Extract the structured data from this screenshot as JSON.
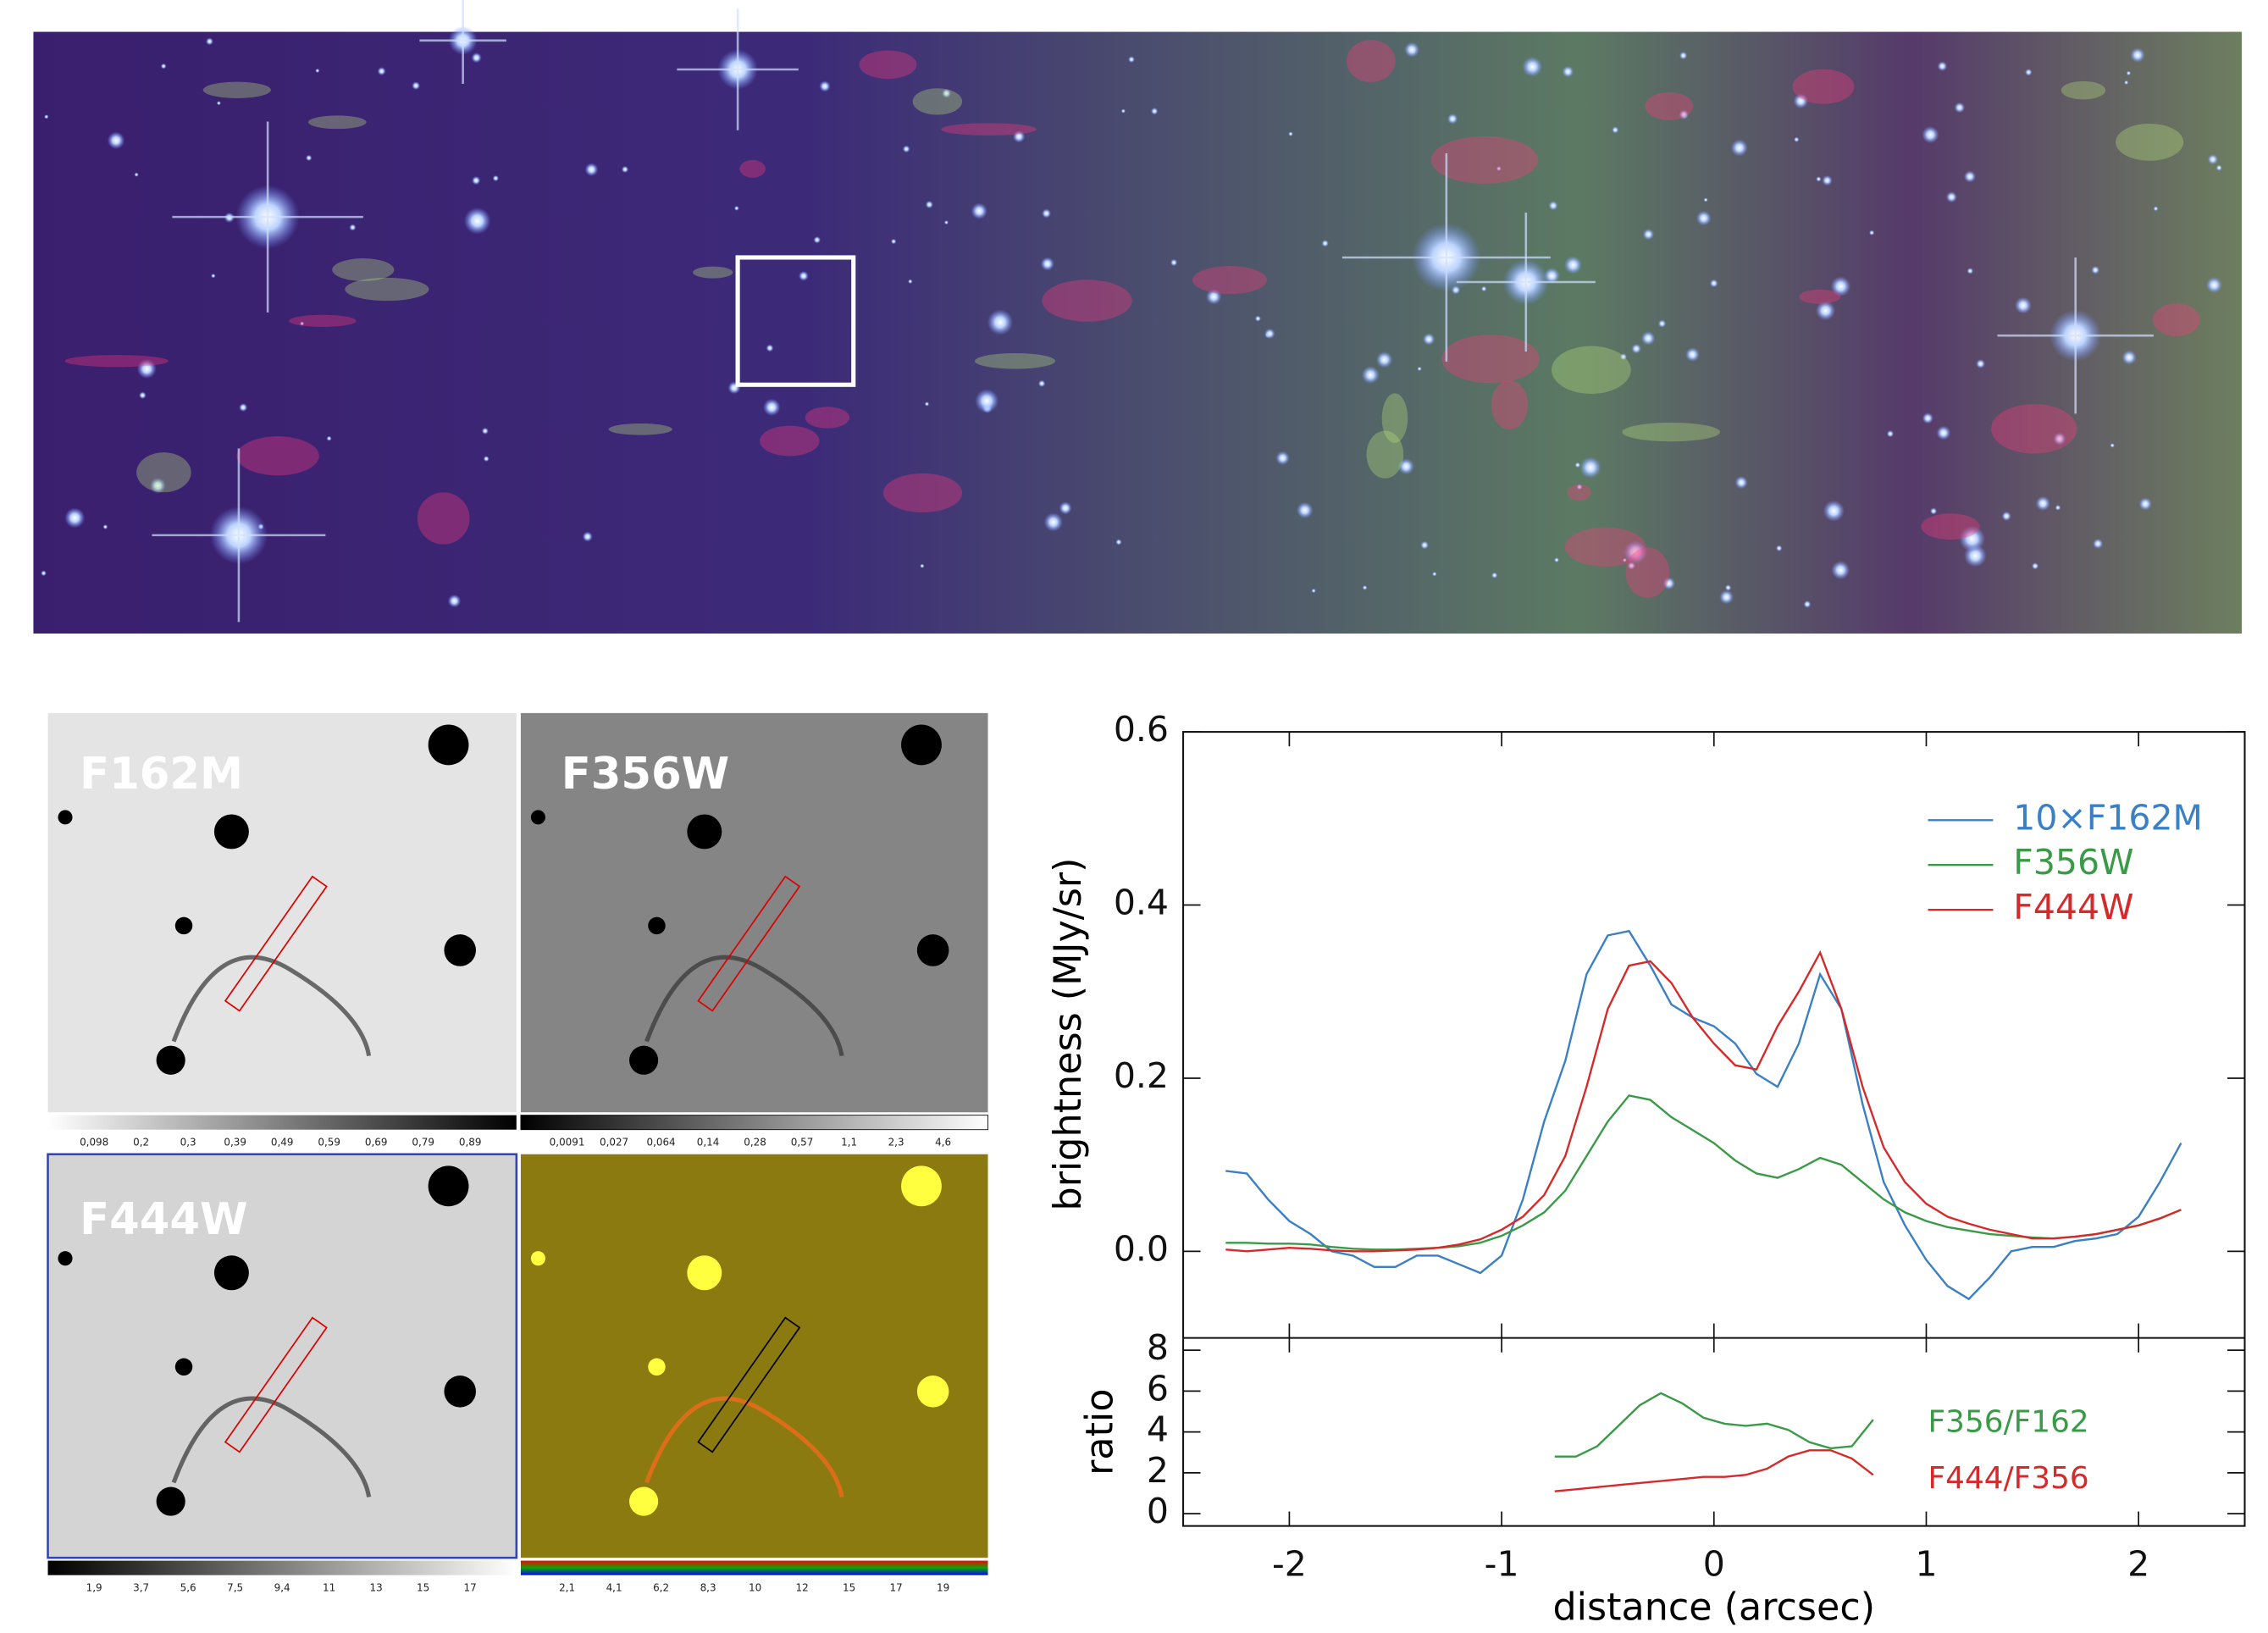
{
  "panels": [
    {
      "label": "F162M",
      "colorbar_labels": [
        "0,098",
        "0,2",
        "0,3",
        "0,39",
        "0,49",
        "0,59",
        "0,69",
        "0,79",
        "0,89"
      ]
    },
    {
      "label": "F356W",
      "colorbar_labels": [
        "0,0091",
        "0,027",
        "0,064",
        "0,14",
        "0,28",
        "0,57",
        "1,1",
        "2,3",
        "4,6"
      ]
    },
    {
      "label": "F444W",
      "colorbar_labels": [
        "1,9",
        "3,7",
        "5,6",
        "7,5",
        "9,4",
        "11",
        "13",
        "15",
        "17"
      ]
    },
    {
      "colorbar_labels": [
        "2,1",
        "4,1",
        "6,2",
        "8,3",
        "10",
        "12",
        "15",
        "17",
        "19"
      ]
    }
  ],
  "chart_data": [
    {
      "type": "line",
      "ylabel": "brightness (MJy/sr)",
      "x": [
        -2.3,
        -2.2,
        -2.1,
        -2.0,
        -1.9,
        -1.8,
        -1.7,
        -1.6,
        -1.5,
        -1.4,
        -1.3,
        -1.2,
        -1.1,
        -1.0,
        -0.9,
        -0.8,
        -0.7,
        -0.6,
        -0.5,
        -0.4,
        -0.3,
        -0.2,
        -0.1,
        0.0,
        0.1,
        0.2,
        0.3,
        0.4,
        0.5,
        0.6,
        0.7,
        0.8,
        0.9,
        1.0,
        1.1,
        1.2,
        1.3,
        1.4,
        1.5,
        1.6,
        1.7,
        1.8,
        1.9,
        2.0,
        2.1,
        2.2
      ],
      "xlim": [
        -2.5,
        2.5
      ],
      "ylim": [
        -0.1,
        0.6
      ],
      "yticks": [
        {
          "value": 0,
          "label": "0.0"
        },
        0.2,
        0.4,
        0.6
      ],
      "series": [
        {
          "name": "10×F162M",
          "color": "#3b7fc4",
          "values": [
            0.093,
            0.09,
            0.06,
            0.035,
            0.02,
            0.0,
            -0.005,
            -0.018,
            -0.018,
            -0.005,
            -0.005,
            -0.015,
            -0.025,
            -0.005,
            0.06,
            0.15,
            0.22,
            0.32,
            0.365,
            0.37,
            0.33,
            0.285,
            0.27,
            0.26,
            0.24,
            0.205,
            0.19,
            0.24,
            0.32,
            0.28,
            0.17,
            0.08,
            0.03,
            -0.01,
            -0.04,
            -0.055,
            -0.03,
            0.0,
            0.005,
            0.005,
            0.012,
            0.015,
            0.02,
            0.04,
            0.08,
            0.125
          ]
        },
        {
          "name": "F356W",
          "color": "#3a9a48",
          "values": [
            0.01,
            0.01,
            0.009,
            0.009,
            0.008,
            0.005,
            0.003,
            0.002,
            0.002,
            0.003,
            0.004,
            0.006,
            0.01,
            0.018,
            0.03,
            0.045,
            0.07,
            0.11,
            0.15,
            0.18,
            0.175,
            0.155,
            0.14,
            0.125,
            0.105,
            0.09,
            0.085,
            0.095,
            0.108,
            0.1,
            0.08,
            0.06,
            0.045,
            0.035,
            0.028,
            0.024,
            0.02,
            0.018,
            0.016,
            0.015,
            0.017,
            0.02,
            0.025,
            0.03,
            0.038,
            0.048
          ]
        },
        {
          "name": "F444W",
          "color": "#d62a2a",
          "values": [
            0.002,
            0.0,
            0.002,
            0.004,
            0.003,
            0.001,
            0.0,
            0.0,
            0.001,
            0.002,
            0.004,
            0.008,
            0.014,
            0.025,
            0.04,
            0.065,
            0.11,
            0.19,
            0.28,
            0.33,
            0.335,
            0.31,
            0.27,
            0.24,
            0.215,
            0.21,
            0.26,
            0.3,
            0.345,
            0.28,
            0.19,
            0.12,
            0.08,
            0.055,
            0.04,
            0.032,
            0.025,
            0.02,
            0.015,
            0.015,
            0.017,
            0.02,
            0.025,
            0.03,
            0.038,
            0.048
          ]
        }
      ]
    },
    {
      "type": "line",
      "ylabel": "ratio",
      "xlabel": "distance (arcsec)",
      "x": [
        -0.75,
        -0.65,
        -0.55,
        -0.45,
        -0.35,
        -0.25,
        -0.15,
        -0.05,
        0.05,
        0.15,
        0.25,
        0.35,
        0.45,
        0.55,
        0.65,
        0.75
      ],
      "xlim": [
        -2.5,
        2.5
      ],
      "ylim": [
        -0.6,
        8.6
      ],
      "xticks": [
        -2,
        -1,
        0,
        1,
        2
      ],
      "yticks": [
        0,
        2,
        4,
        6,
        8
      ],
      "series": [
        {
          "name": "F356/F162",
          "color": "#3a9a48",
          "values": [
            2.8,
            2.8,
            3.3,
            4.3,
            5.3,
            5.9,
            5.4,
            4.7,
            4.4,
            4.3,
            4.4,
            4.1,
            3.5,
            3.2,
            3.3,
            4.6
          ]
        },
        {
          "name": "F444/F356",
          "color": "#d62a2a",
          "values": [
            1.1,
            1.2,
            1.3,
            1.4,
            1.5,
            1.6,
            1.7,
            1.8,
            1.8,
            1.9,
            2.2,
            2.8,
            3.1,
            3.1,
            2.7,
            1.9
          ]
        }
      ]
    }
  ]
}
